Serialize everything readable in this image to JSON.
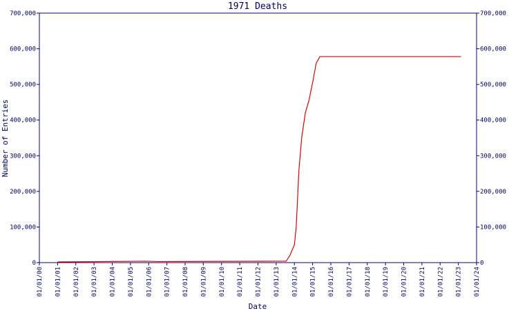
{
  "chart_data": {
    "type": "line",
    "title": "1971 Deaths",
    "x_label": "Date",
    "y_label": "Number of Entries",
    "color": "#e00000",
    "axis_color": "#000080",
    "x": [
      1,
      5.8,
      6.5,
      13.55,
      13.75,
      14.0,
      14.1,
      14.25,
      14.4,
      14.6,
      14.8,
      15.0,
      15.2,
      15.4,
      23.15
    ],
    "values": [
      2000,
      4000,
      3000,
      4000,
      20000,
      50000,
      100000,
      260000,
      350000,
      420000,
      455000,
      505000,
      560000,
      578000,
      578000
    ],
    "xlim": [
      0,
      24
    ],
    "xticks": [
      {
        "value": 0,
        "label": "01/01/00"
      },
      {
        "value": 1,
        "label": "01/01/01"
      },
      {
        "value": 2,
        "label": "01/01/02"
      },
      {
        "value": 3,
        "label": "01/01/03"
      },
      {
        "value": 4,
        "label": "01/01/04"
      },
      {
        "value": 5,
        "label": "01/01/05"
      },
      {
        "value": 6,
        "label": "01/01/06"
      },
      {
        "value": 7,
        "label": "01/01/07"
      },
      {
        "value": 8,
        "label": "01/01/08"
      },
      {
        "value": 9,
        "label": "01/01/09"
      },
      {
        "value": 10,
        "label": "01/01/10"
      },
      {
        "value": 11,
        "label": "01/01/11"
      },
      {
        "value": 12,
        "label": "01/01/12"
      },
      {
        "value": 13,
        "label": "01/01/13"
      },
      {
        "value": 14,
        "label": "01/01/14"
      },
      {
        "value": 15,
        "label": "01/01/15"
      },
      {
        "value": 16,
        "label": "01/01/16"
      },
      {
        "value": 17,
        "label": "01/01/17"
      },
      {
        "value": 18,
        "label": "01/01/18"
      },
      {
        "value": 19,
        "label": "01/01/19"
      },
      {
        "value": 20,
        "label": "01/01/20"
      },
      {
        "value": 21,
        "label": "01/01/21"
      },
      {
        "value": 22,
        "label": "01/01/22"
      },
      {
        "value": 23,
        "label": "01/01/23"
      },
      {
        "value": 24,
        "label": "01/01/24"
      }
    ],
    "ylim": [
      0,
      700000
    ],
    "yticks": [
      0,
      {
        "value": 100000,
        "label": "100,000"
      },
      {
        "value": 200000,
        "label": "200,000"
      },
      {
        "value": 300000,
        "label": "300,000"
      },
      {
        "value": 400000,
        "label": "400,000"
      },
      {
        "value": 500000,
        "label": "500,000"
      },
      {
        "value": 600000,
        "label": "600,000"
      },
      {
        "value": 700000,
        "label": "700,000"
      }
    ],
    "grid": false
  }
}
